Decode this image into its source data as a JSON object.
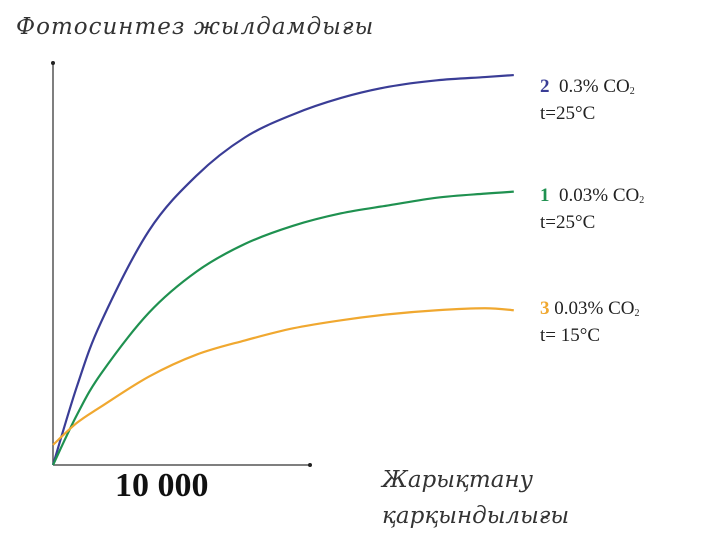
{
  "chart_data": {
    "type": "line",
    "title": "Фотосинтез жылдамдығы",
    "ylabel": "Фотосинтез жылдамдығы",
    "xlabel_line1": "Жарықтану",
    "xlabel_line2": "қарқындылығы",
    "x_tick_label": "10 000",
    "xlim": [
      0,
      100
    ],
    "ylim": [
      0,
      100
    ],
    "grid": false,
    "legend_placement": "right",
    "x": [
      0,
      5,
      10,
      20,
      30,
      40,
      50,
      60,
      70,
      80,
      90,
      96
    ],
    "series": [
      {
        "name": "2",
        "number": "2",
        "co2": "0.3% CO",
        "co2_sub": "2",
        "temp": "t=25°C",
        "color": "#3a3d96",
        "values": [
          0,
          19.6,
          35.5,
          58.3,
          72.1,
          81.5,
          87.2,
          91.3,
          94.1,
          95.7,
          96.5,
          97
        ]
      },
      {
        "name": "1",
        "number": "1",
        "co2": "0.03% CO",
        "co2_sub": "2",
        "temp": "t=25°C",
        "color": "#1f9150",
        "values": [
          0,
          12.5,
          22.7,
          37.9,
          48.2,
          55.0,
          59.5,
          62.6,
          64.6,
          66.5,
          67.5,
          68
        ]
      },
      {
        "name": "3",
        "number": "3",
        "co2": "0.03% CO",
        "co2_sub": "2",
        "temp": "t= 15°C",
        "color": "#f0a830",
        "values": [
          5,
          10.5,
          14.5,
          22,
          27.5,
          31,
          34,
          36,
          37.5,
          38.5,
          39,
          38.5
        ]
      }
    ]
  }
}
